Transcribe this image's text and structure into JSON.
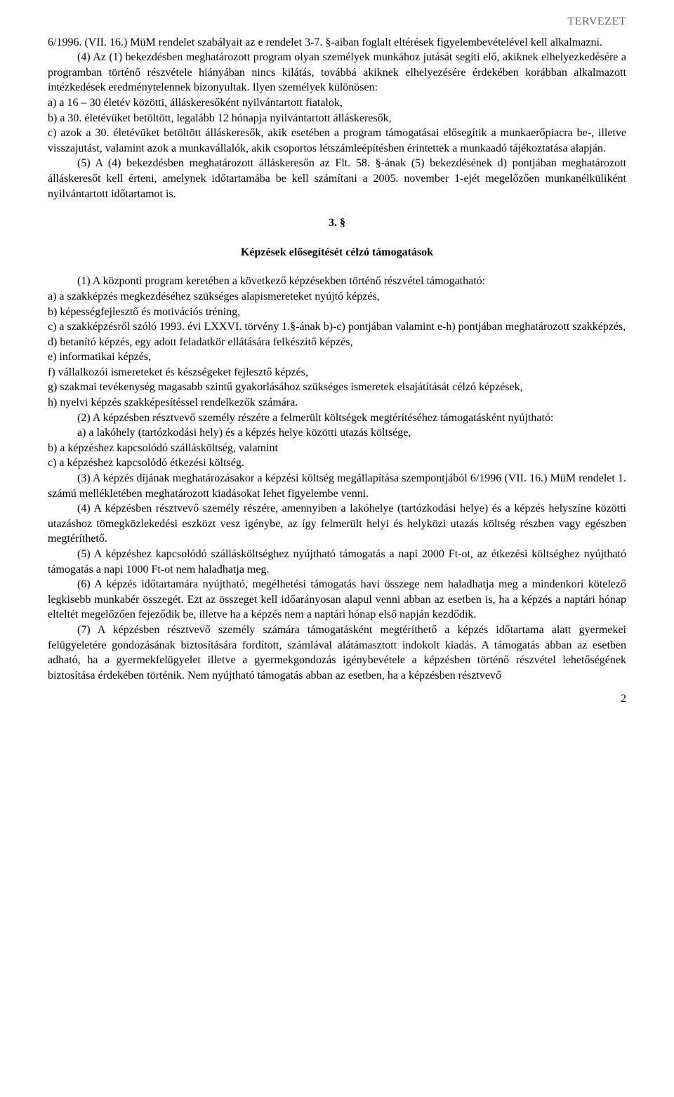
{
  "header": {
    "label": "TERVEZET"
  },
  "p1": "6/1996. (VII. 16.) MüM rendelet szabályait az e rendelet 3-7. §-aiban foglalt eltérések figyelembevételével kell alkalmazni.",
  "p2": "(4) Az (1) bekezdésben meghatározott program olyan személyek munkához jutását segíti elő, akiknek elhelyezkedésére a programban történő részvétele hiányában nincs kilátás, továbbá akiknek elhelyezésére érdekében korábban alkalmazott intézkedések eredménytelennek bizonyultak. Ilyen személyek különösen:",
  "l2a": "a) a 16 – 30 életév közötti, álláskeresőként nyilvántartott fiatalok,",
  "l2b": "b) a 30. életévüket betöltött, legalább 12 hónapja nyilvántartott álláskeresők,",
  "l2c": "c) azok a 30. életévüket betöltött álláskeresők, akik esetében a program támogatásai elősegítik a munkaerőpiacra be-, illetve visszajutást, valamint azok a munkavállalók, akik csoportos létszámleépítésben érintettek a munkaadó tájékoztatása alapján.",
  "p3": "(5) A (4) bekezdésben meghatározott álláskeresőn az Flt. 58. §-ának (5) bekezdésének d) pontjában meghatározott álláskeresőt kell érteni, amelynek időtartamába be kell számítani a 2005. november 1-ejét megelőzően munkanélküliként nyilvántartott időtartamot is.",
  "section3": {
    "number": "3. §",
    "title": "Képzések elősegítését célzó támogatások"
  },
  "p4": "(1) A központi program keretében a következő képzésekben történő részvétel támogatható:",
  "l4a": "a) a szakképzés megkezdéséhez szükséges alapismereteket nyújtó képzés,",
  "l4b": "b) képességfejlesztő és motivációs tréning,",
  "l4c": "c) a szakképzésről szóló 1993. évi LXXVI. törvény 1.§-ának b)-c) pontjában valamint e-h) pontjában meghatározott szakképzés,",
  "l4d": "d) betanító képzés, egy adott feladatkör ellátására felkészítő képzés,",
  "l4e": "e) informatikai képzés,",
  "l4f": "f) vállalkozói ismereteket és készségeket fejlesztő képzés,",
  "l4g": "g) szakmai tevékenység magasabb szintű gyakorlásához szükséges ismeretek elsajátítását célzó képzések,",
  "l4h": "h) nyelvi képzés szakképesítéssel rendelkezők számára.",
  "p5": "(2) A képzésben résztvevő személy részére a felmerült költségek megtérítéséhez támogatásként nyújtható:",
  "l5a": "a) a lakóhely (tartózkodási hely) és a képzés helye közötti utazás költsége,",
  "l5b": "b) a képzéshez kapcsolódó szállásköltség, valamint",
  "l5c": "c) a képzéshez kapcsolódó étkezési költség.",
  "p6": "(3) A képzés díjának meghatározásakor a képzési költség megállapítása szempontjából 6/1996 (VII. 16.) MüM rendelet 1. számú mellékletében meghatározott kiadásokat lehet figyelembe venni.",
  "p7": "(4) A képzésben résztvevő személy részére, amennyiben a lakóhelye (tartózkodási helye) és a képzés helyszíne közötti utazáshoz tömegközlekedési eszközt vesz igénybe, az így felmerült helyi és helyközi utazás költség részben vagy egészben megtéríthető.",
  "p8": "(5) A képzéshez kapcsolódó szállásköltséghez nyújtható támogatás a napi 2000 Ft-ot, az étkezési költséghez nyújtható támogatás a napi 1000 Ft-ot nem haladhatja meg.",
  "p9": "(6) A képzés időtartamára nyújtható, megélhetési támogatás havi összege nem haladhatja meg a mindenkori kötelező legkisebb munkabér összegét. Ezt az összeget kell időarányosan alapul venni abban az esetben is, ha a képzés a naptári hónap elteltét megelőzően fejeződik be, illetve ha a képzés nem a naptári hónap első napján kezdődik.",
  "p10": "(7) A képzésben résztvevő személy számára támogatásként megtéríthető a képzés időtartama alatt gyermekei felügyeletére gondozásának biztosítására fordított, számlával alátámasztott indokolt kiadás. A támogatás abban az esetben adható, ha a gyermekfelügyelet illetve a gyermekgondozás igénybevétele a képzésben történő részvétel lehetőségének biztosítása érdekében történik. Nem nyújtható támogatás abban az esetben, ha a képzésben résztvevő",
  "pageNumber": "2"
}
